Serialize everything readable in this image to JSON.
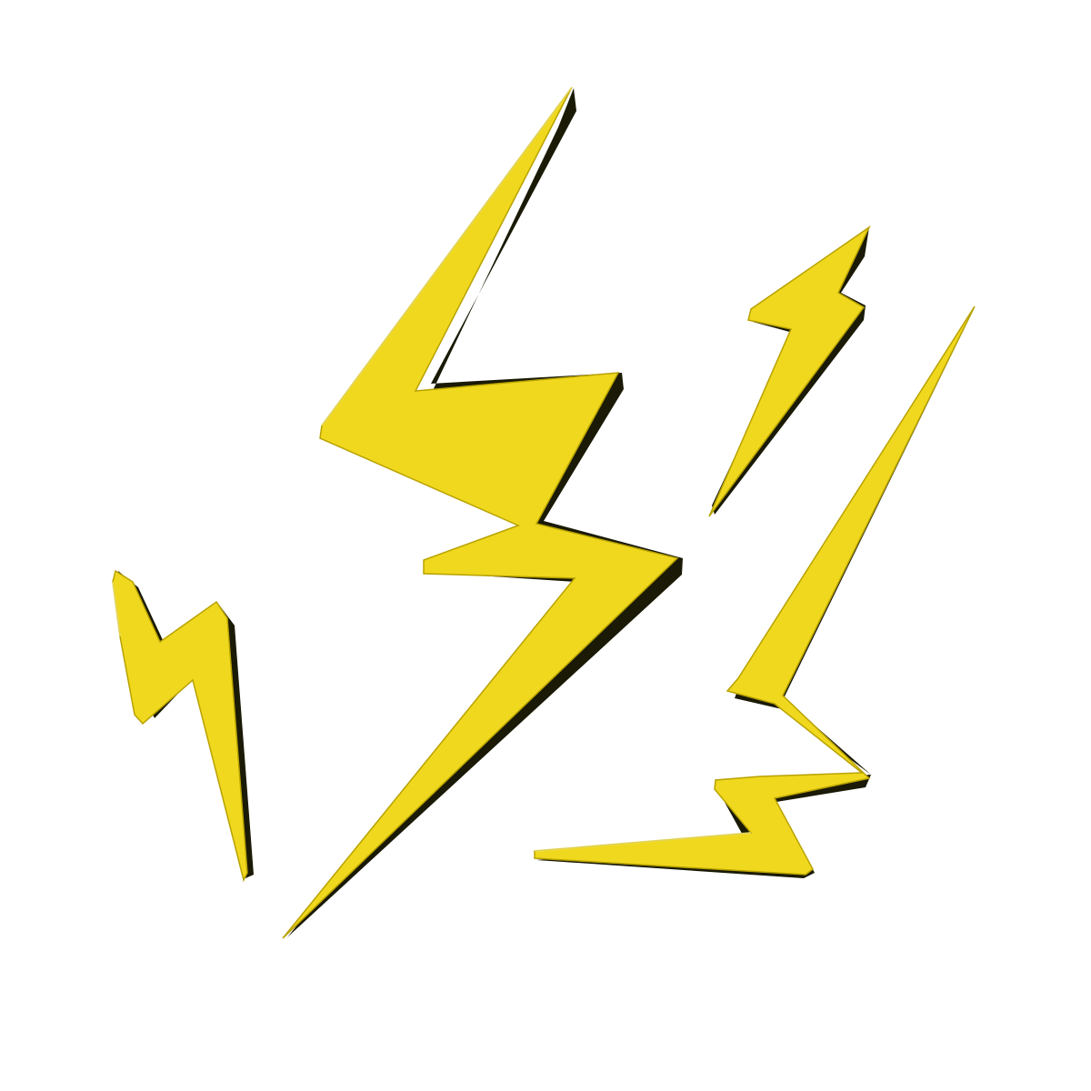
{
  "colors": {
    "background": "#ffffff",
    "bolt_fill": "#f0d81e",
    "bolt_shadow": "#1a1a06",
    "bolt_edge": "#b8a200"
  },
  "bolts": [
    {
      "name": "large-lightning-bolt-icon"
    },
    {
      "name": "small-top-right-lightning-bolt-icon"
    },
    {
      "name": "left-lightning-bolt-icon"
    },
    {
      "name": "bottom-right-lightning-bolt-icon"
    }
  ]
}
